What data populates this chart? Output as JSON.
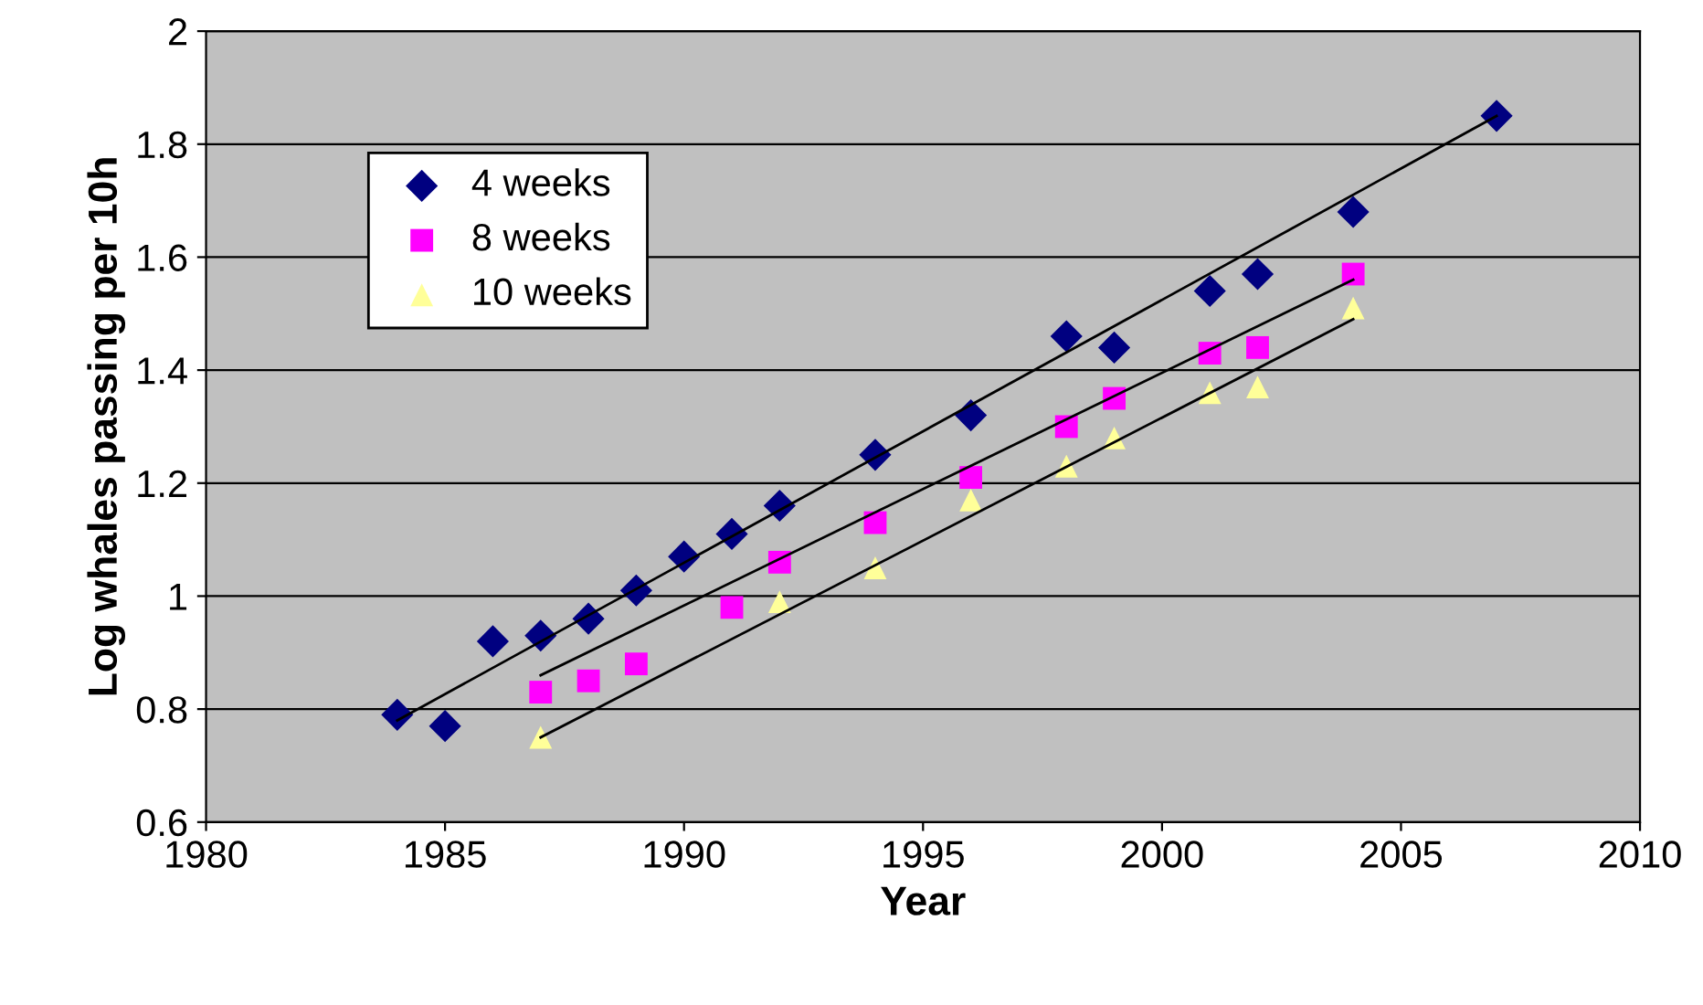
{
  "chart_data": {
    "type": "scatter",
    "xlabel": "Year",
    "ylabel": "Log whales passing per 10h",
    "xlim": [
      1980,
      2010
    ],
    "xticks": [
      1980,
      1985,
      1990,
      1995,
      2000,
      2005,
      2010
    ],
    "ylim": [
      0.6,
      2
    ],
    "yticks": [
      0.6,
      0.8,
      1,
      1.2,
      1.4,
      1.6,
      1.8,
      2
    ],
    "grid": "y",
    "legend": "top left",
    "series": [
      {
        "name": "4 weeks",
        "color": "#000080",
        "marker": "diamond",
        "x": [
          1984,
          1985,
          1986,
          1987,
          1988,
          1989,
          1990,
          1991,
          1992,
          1994,
          1996,
          1998,
          1999,
          2001,
          2002,
          2004,
          2007
        ],
        "values": [
          0.79,
          0.77,
          0.92,
          0.93,
          0.96,
          1.01,
          1.07,
          1.11,
          1.16,
          1.25,
          1.32,
          1.46,
          1.44,
          1.54,
          1.57,
          1.68,
          1.85
        ]
      },
      {
        "name": "8 weeks",
        "color": "#ff00ff",
        "marker": "square",
        "x": [
          1987,
          1988,
          1989,
          1991,
          1992,
          1994,
          1996,
          1998,
          1999,
          2001,
          2002,
          2004
        ],
        "values": [
          0.83,
          0.85,
          0.88,
          0.98,
          1.06,
          1.13,
          1.21,
          1.3,
          1.35,
          1.43,
          1.44,
          1.57
        ]
      },
      {
        "name": "10 weeks",
        "color": "#ffff99",
        "marker": "triangle",
        "x": [
          1987,
          1992,
          1994,
          1996,
          1998,
          1999,
          2001,
          2002,
          2004
        ],
        "values": [
          0.75,
          0.99,
          1.05,
          1.17,
          1.23,
          1.28,
          1.36,
          1.37,
          1.51
        ]
      },
      {
        "type": "line",
        "color": "#000000",
        "x": [
          1984,
          2007
        ],
        "values": [
          0.78,
          1.85
        ]
      },
      {
        "type": "line",
        "color": "#000000",
        "x": [
          1987,
          2004
        ],
        "values": [
          0.86,
          1.56
        ]
      },
      {
        "type": "line",
        "color": "#000000",
        "x": [
          1987,
          2004
        ],
        "values": [
          0.75,
          1.49
        ]
      }
    ]
  }
}
